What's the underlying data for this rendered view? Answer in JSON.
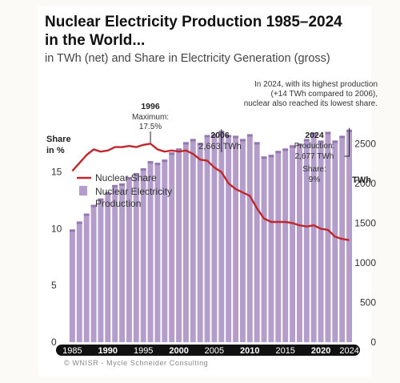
{
  "title_line1": "Nuclear Electricity Production 1985–2024",
  "title_line2": "in the World...",
  "subtitle": "in TWh (net) and Share in Electricity Generation (gross)",
  "footer": "© WNISR - Mycle Schneider Consulting",
  "annotations": {
    "top_note": [
      "In 2024, with its highest production",
      "(+14 TWh compared to 2006),",
      "nuclear also reached its lowest share."
    ],
    "y1996": "1996",
    "y1996_text1": "Maximum:",
    "y1996_text2": "17.5%",
    "y2006": "2006",
    "y2006_text": "2,663 TWh",
    "y2024": "2024",
    "y2024_text1": "Production:",
    "y2024_text2": "2,677 TWh",
    "y2024_text3": "Share:",
    "y2024_text4": "9%"
  },
  "colors": {
    "bar": "#b49ccb",
    "bar_highlight": "#7a5a9a",
    "line": "#c0272d",
    "axis_band": "#111111"
  },
  "chart_data": {
    "type": "bar+line",
    "x": [
      1985,
      1986,
      1987,
      1988,
      1989,
      1990,
      1991,
      1992,
      1993,
      1994,
      1995,
      1996,
      1997,
      1998,
      1999,
      2000,
      2001,
      2002,
      2003,
      2004,
      2005,
      2006,
      2007,
      2008,
      2009,
      2010,
      2011,
      2012,
      2013,
      2014,
      2015,
      2016,
      2017,
      2018,
      2019,
      2020,
      2021,
      2022,
      2023,
      2024
    ],
    "x_tick_labels": [
      "1985",
      "1990",
      "1995",
      "2000",
      "2005",
      "2010",
      "2015",
      "2020",
      "2024"
    ],
    "series": [
      {
        "name": "Nuclear Electricity Production",
        "axis": "right",
        "values": [
          1420,
          1520,
          1620,
          1730,
          1810,
          1890,
          1980,
          2000,
          2080,
          2130,
          2190,
          2280,
          2260,
          2300,
          2390,
          2440,
          2520,
          2560,
          2510,
          2610,
          2620,
          2663,
          2610,
          2600,
          2560,
          2620,
          2520,
          2340,
          2360,
          2410,
          2440,
          2480,
          2500,
          2560,
          2640,
          2540,
          2650,
          2540,
          2600,
          2677
        ]
      },
      {
        "name": "Nuclear Share",
        "axis": "left",
        "values": [
          15.1,
          15.8,
          16.5,
          17.0,
          16.8,
          16.9,
          17.2,
          17.2,
          17.3,
          17.2,
          17.4,
          17.5,
          17.0,
          16.8,
          16.9,
          16.8,
          16.9,
          16.6,
          16.1,
          16.0,
          15.4,
          15.0,
          14.0,
          13.5,
          13.2,
          12.9,
          11.8,
          10.9,
          10.6,
          10.6,
          10.6,
          10.5,
          10.3,
          10.2,
          10.3,
          10.0,
          9.9,
          9.3,
          9.1,
          9.0
        ]
      }
    ],
    "ylabel_left": "Share in %",
    "ylabel_right": "TWh",
    "ylim_left": [
      0,
      22.4
    ],
    "ylim_right": [
      0,
      3200
    ],
    "yticks_left": [
      0,
      5,
      10,
      15
    ],
    "yticks_right": [
      0,
      500,
      1000,
      1500,
      2000,
      2500
    ],
    "legend": [
      {
        "label": "Nuclear Share",
        "type": "line"
      },
      {
        "label_line1": "Nuclear Electricity",
        "label_line2": "Production",
        "type": "bar"
      }
    ],
    "legend_position": "upper-left inside plot"
  }
}
